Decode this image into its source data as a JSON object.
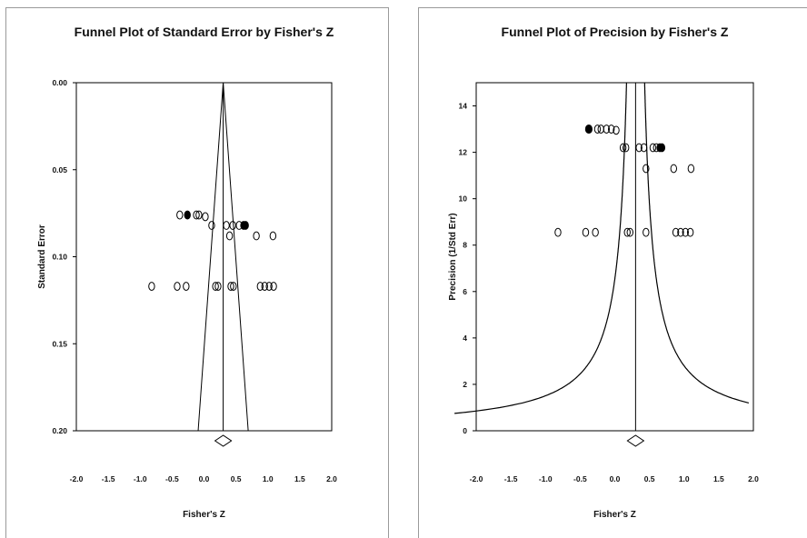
{
  "chart_data": [
    {
      "type": "scatter",
      "title": "Funnel Plot of Standard Error by Fisher's Z",
      "xlabel": "Fisher's Z",
      "ylabel": "Standard Error",
      "xlim": [
        -2.0,
        2.0
      ],
      "ylim": [
        0.0,
        0.2
      ],
      "y_reversed": true,
      "x_ticks": [
        "-2.0",
        "-1.5",
        "-1.0",
        "-0.5",
        "0.0",
        "0.5",
        "1.0",
        "1.5",
        "2.0"
      ],
      "y_ticks": [
        "0.00",
        "0.05",
        "0.10",
        "0.15",
        "0.20"
      ],
      "summary_effect": 0.3,
      "points_open": [
        {
          "x": -0.38,
          "y": 0.076
        },
        {
          "x": -0.12,
          "y": 0.076
        },
        {
          "x": -0.08,
          "y": 0.076
        },
        {
          "x": 0.02,
          "y": 0.077
        },
        {
          "x": 0.12,
          "y": 0.082
        },
        {
          "x": 0.35,
          "y": 0.082
        },
        {
          "x": 0.45,
          "y": 0.082
        },
        {
          "x": 0.55,
          "y": 0.082
        },
        {
          "x": 0.4,
          "y": 0.088
        },
        {
          "x": 0.82,
          "y": 0.088
        },
        {
          "x": 1.08,
          "y": 0.088
        },
        {
          "x": -0.82,
          "y": 0.117
        },
        {
          "x": -0.42,
          "y": 0.117
        },
        {
          "x": -0.28,
          "y": 0.117
        },
        {
          "x": 0.18,
          "y": 0.117
        },
        {
          "x": 0.22,
          "y": 0.117
        },
        {
          "x": 0.42,
          "y": 0.117
        },
        {
          "x": 0.46,
          "y": 0.117
        },
        {
          "x": 0.88,
          "y": 0.117
        },
        {
          "x": 0.95,
          "y": 0.117
        },
        {
          "x": 1.02,
          "y": 0.117
        },
        {
          "x": 1.09,
          "y": 0.117
        }
      ],
      "points_filled": [
        {
          "x": -0.26,
          "y": 0.076
        },
        {
          "x": 0.62,
          "y": 0.082
        },
        {
          "x": 0.65,
          "y": 0.082
        }
      ]
    },
    {
      "type": "scatter",
      "title": "Funnel Plot of Precision by Fisher's Z",
      "xlabel": "Fisher's Z",
      "ylabel": "Precision (1/Std Err)",
      "xlim": [
        -2.0,
        2.0
      ],
      "ylim": [
        0,
        15
      ],
      "x_ticks": [
        "-2.0",
        "-1.5",
        "-1.0",
        "-0.5",
        "0.0",
        "0.5",
        "1.0",
        "1.5",
        "2.0"
      ],
      "y_ticks": [
        "0",
        "2",
        "4",
        "6",
        "8",
        "10",
        "12",
        "14"
      ],
      "summary_effect": 0.3,
      "points_open": [
        {
          "x": -0.38,
          "y": 13.0
        },
        {
          "x": -0.25,
          "y": 13.0
        },
        {
          "x": -0.2,
          "y": 13.0
        },
        {
          "x": -0.12,
          "y": 13.0
        },
        {
          "x": -0.05,
          "y": 13.0
        },
        {
          "x": 0.02,
          "y": 12.95
        },
        {
          "x": 0.12,
          "y": 12.2
        },
        {
          "x": 0.16,
          "y": 12.2
        },
        {
          "x": 0.35,
          "y": 12.2
        },
        {
          "x": 0.42,
          "y": 12.2
        },
        {
          "x": 0.55,
          "y": 12.2
        },
        {
          "x": 0.6,
          "y": 12.2
        },
        {
          "x": 0.45,
          "y": 11.3
        },
        {
          "x": 0.85,
          "y": 11.3
        },
        {
          "x": 1.1,
          "y": 11.3
        },
        {
          "x": -0.82,
          "y": 8.55
        },
        {
          "x": -0.42,
          "y": 8.55
        },
        {
          "x": -0.28,
          "y": 8.55
        },
        {
          "x": 0.18,
          "y": 8.55
        },
        {
          "x": 0.22,
          "y": 8.55
        },
        {
          "x": 0.45,
          "y": 8.55
        },
        {
          "x": 0.88,
          "y": 8.55
        },
        {
          "x": 0.95,
          "y": 8.55
        },
        {
          "x": 1.02,
          "y": 8.55
        },
        {
          "x": 1.09,
          "y": 8.55
        }
      ],
      "points_filled": [
        {
          "x": -0.37,
          "y": 13.0
        },
        {
          "x": 0.65,
          "y": 12.2
        },
        {
          "x": 0.68,
          "y": 12.2
        }
      ]
    }
  ]
}
